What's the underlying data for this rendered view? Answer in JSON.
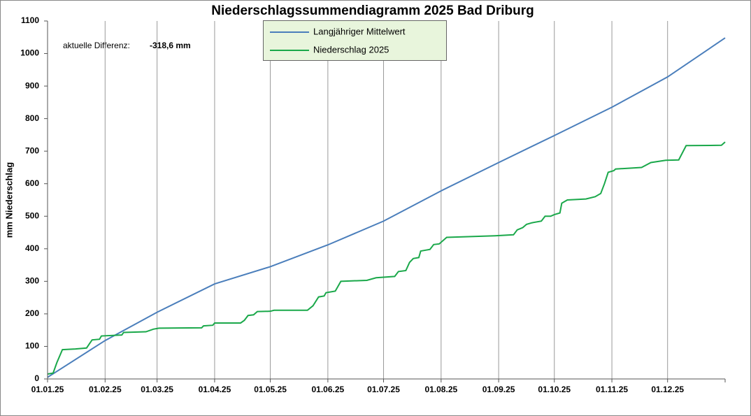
{
  "chart_data": {
    "type": "line",
    "title": "Niederschlagssummendiagramm  2025 Bad Driburg",
    "y_label": "mm Niederschlag",
    "annotation": {
      "label": "aktuelle Differenz:",
      "value_text": "-318,6 mm"
    },
    "xlim": [
      0,
      365
    ],
    "ylim": [
      0,
      1100
    ],
    "xticks": [
      {
        "value": 0,
        "label": "01.01.25"
      },
      {
        "value": 31,
        "label": "01.02.25"
      },
      {
        "value": 59,
        "label": "01.03.25"
      },
      {
        "value": 90,
        "label": "01.04.25"
      },
      {
        "value": 120,
        "label": "01.05.25"
      },
      {
        "value": 151,
        "label": "01.06.25"
      },
      {
        "value": 181,
        "label": "01.07.25"
      },
      {
        "value": 212,
        "label": "01.08.25"
      },
      {
        "value": 243,
        "label": "01.09.25"
      },
      {
        "value": 273,
        "label": "01.10.25"
      },
      {
        "value": 304,
        "label": "01.11.25"
      },
      {
        "value": 334,
        "label": "01.12.25"
      }
    ],
    "yticks": [
      0,
      100,
      200,
      300,
      400,
      500,
      600,
      700,
      800,
      900,
      1000,
      1100
    ],
    "grid": "x",
    "series": [
      {
        "name": "Langjähriger Mittelwert",
        "color": "#4a7ebb",
        "x": [
          0,
          31,
          59,
          90,
          120,
          151,
          181,
          212,
          243,
          273,
          304,
          334,
          365
        ],
        "values": [
          5,
          118,
          205,
          292,
          345,
          412,
          485,
          578,
          665,
          748,
          835,
          928,
          1048
        ]
      },
      {
        "name": "Niederschlag 2025",
        "color": "#1aa84a",
        "x": [
          0,
          3,
          5,
          8,
          15,
          21,
          24,
          28,
          29,
          40,
          41,
          53,
          57,
          60,
          83,
          84,
          89,
          90,
          104,
          106,
          108,
          111,
          113,
          120,
          122,
          140,
          143,
          146,
          149,
          150,
          155,
          158,
          172,
          177,
          187,
          189,
          193,
          195,
          197,
          200,
          201,
          206,
          208,
          211,
          215,
          241,
          251,
          253,
          256,
          258,
          261,
          266,
          268,
          271,
          273,
          276,
          277,
          280,
          290,
          295,
          298,
          300,
          302,
          305,
          306,
          320,
          325,
          333,
          340,
          342,
          344,
          363,
          365
        ],
        "values": [
          15,
          18,
          50,
          90,
          92,
          95,
          120,
          122,
          132,
          135,
          143,
          145,
          153,
          156,
          157,
          163,
          165,
          172,
          172,
          180,
          195,
          197,
          207,
          208,
          211,
          211,
          225,
          252,
          255,
          265,
          270,
          300,
          303,
          311,
          315,
          330,
          333,
          358,
          370,
          373,
          393,
          398,
          413,
          415,
          435,
          440,
          443,
          458,
          465,
          475,
          480,
          485,
          500,
          500,
          505,
          510,
          540,
          550,
          553,
          560,
          570,
          600,
          635,
          640,
          645,
          650,
          665,
          672,
          673,
          695,
          717,
          718,
          728
        ]
      }
    ]
  }
}
